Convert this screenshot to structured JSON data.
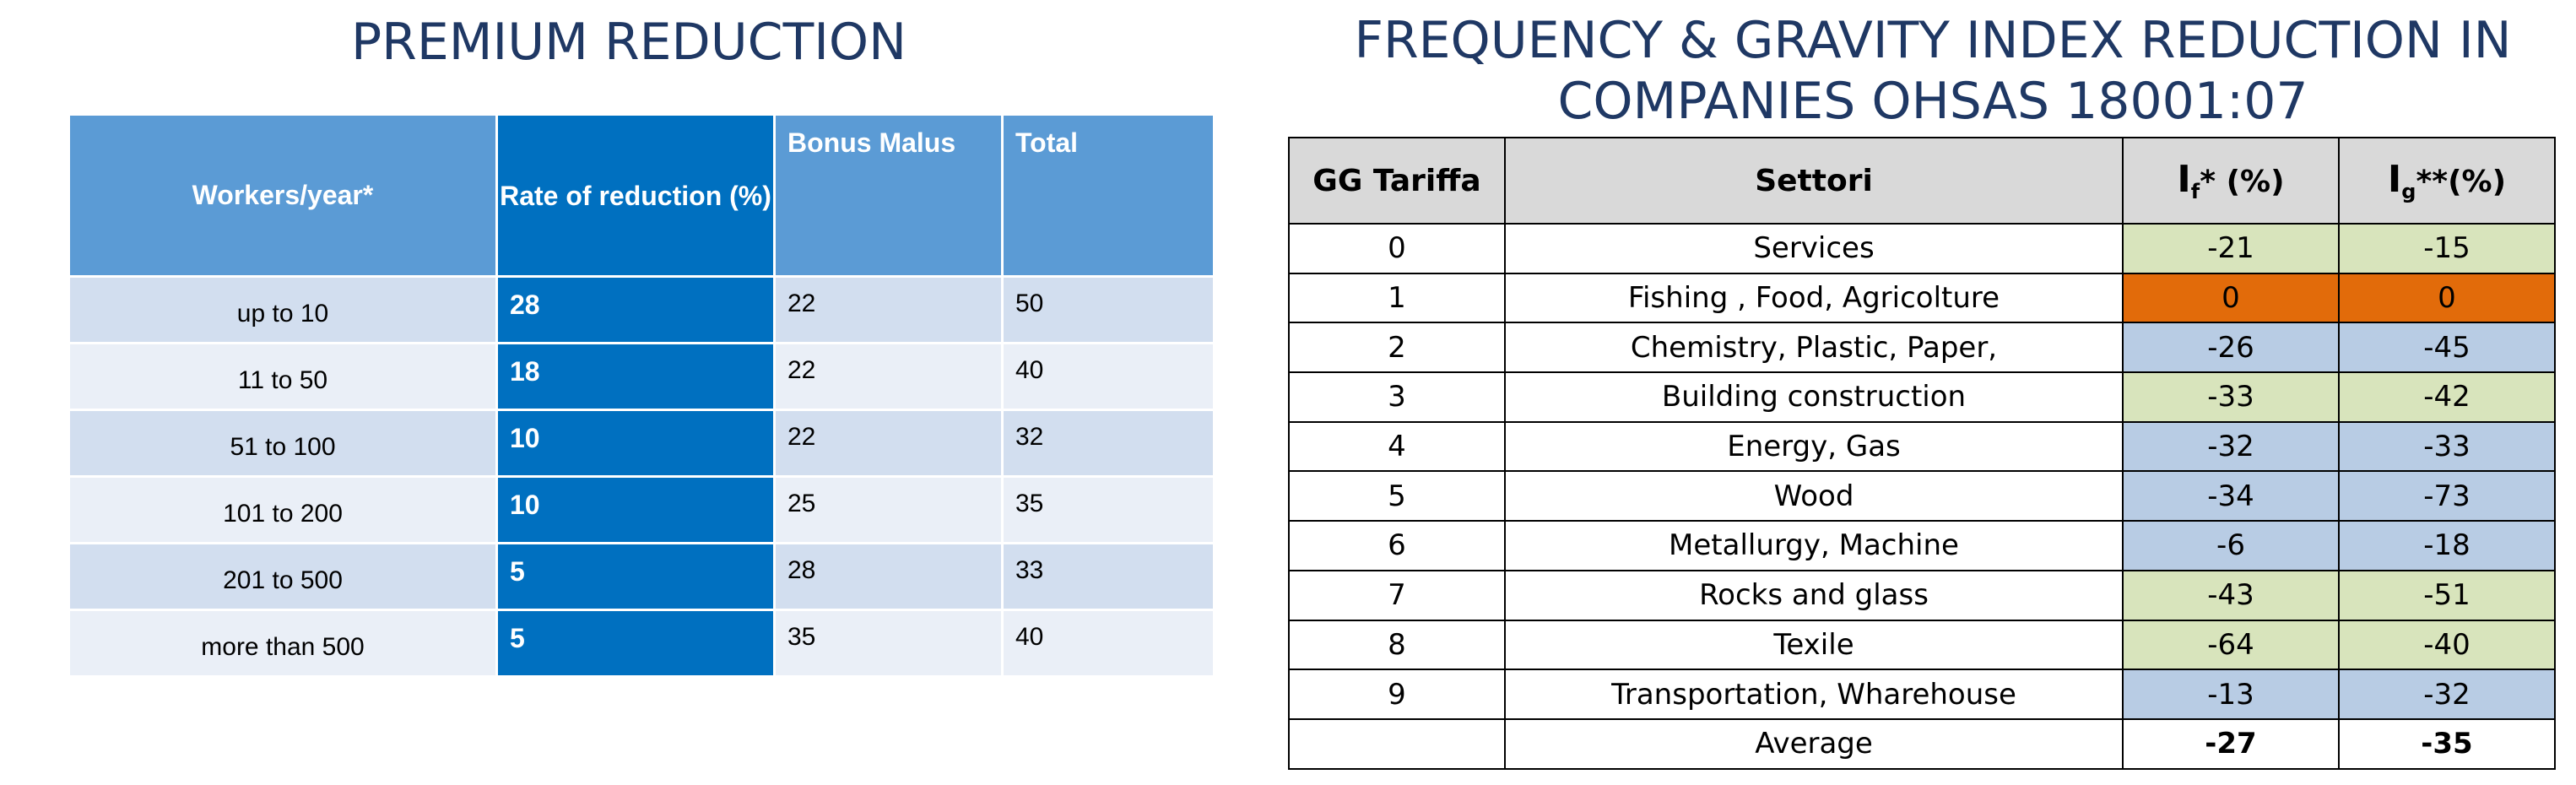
{
  "left": {
    "title": "PREMIUM REDUCTION",
    "headers": [
      "Workers/year*",
      "Rate of reduction (%)",
      "Bonus Malus",
      "Total"
    ],
    "rows": [
      [
        "up to 10",
        "28",
        "22",
        "50"
      ],
      [
        "11 to 50",
        "18",
        "22",
        "40"
      ],
      [
        "51 to 100",
        "10",
        "22",
        "32"
      ],
      [
        "101 to 200",
        "10",
        "25",
        "35"
      ],
      [
        "201 to 500",
        "5",
        "28",
        "33"
      ],
      [
        "more than 500",
        "5",
        "35",
        "40"
      ]
    ]
  },
  "right": {
    "title": "FREQUENCY & GRAVITY INDEX REDUCTION IN COMPANIES OHSAS 18001:07",
    "headers": {
      "gg": "GG Tariffa",
      "settori": "Settori",
      "if_main": "I",
      "if_sub": "f",
      "if_tail": "* (%)",
      "ig_main": "I",
      "ig_sub": "g",
      "ig_tail": "**(%)"
    },
    "rows": [
      {
        "gg": "0",
        "sector": "Services",
        "if": "-21",
        "ig": "-15",
        "color": "green"
      },
      {
        "gg": "1",
        "sector": "Fishing , Food, Agricolture",
        "if": "0",
        "ig": "0",
        "color": "orange"
      },
      {
        "gg": "2",
        "sector": "Chemistry, Plastic, Paper,",
        "if": "-26",
        "ig": "-45",
        "color": "blue"
      },
      {
        "gg": "3",
        "sector": "Building construction",
        "if": "-33",
        "ig": "-42",
        "color": "green"
      },
      {
        "gg": "4",
        "sector": "Energy, Gas",
        "if": "-32",
        "ig": "-33",
        "color": "blue"
      },
      {
        "gg": "5",
        "sector": "Wood",
        "if": "-34",
        "ig": "-73",
        "color": "blue"
      },
      {
        "gg": "6",
        "sector": "Metallurgy, Machine",
        "if": "-6",
        "ig": "-18",
        "color": "blue"
      },
      {
        "gg": "7",
        "sector": "Rocks and glass",
        "if": "-43",
        "ig": "-51",
        "color": "green"
      },
      {
        "gg": "8",
        "sector": "Texile",
        "if": "-64",
        "ig": "-40",
        "color": "green"
      },
      {
        "gg": "9",
        "sector": "Transportation, Wharehouse",
        "if": "-13",
        "ig": "-32",
        "color": "blue"
      }
    ],
    "average": {
      "gg": "",
      "sector": "Average",
      "if": "-27",
      "ig": "-35"
    }
  }
}
